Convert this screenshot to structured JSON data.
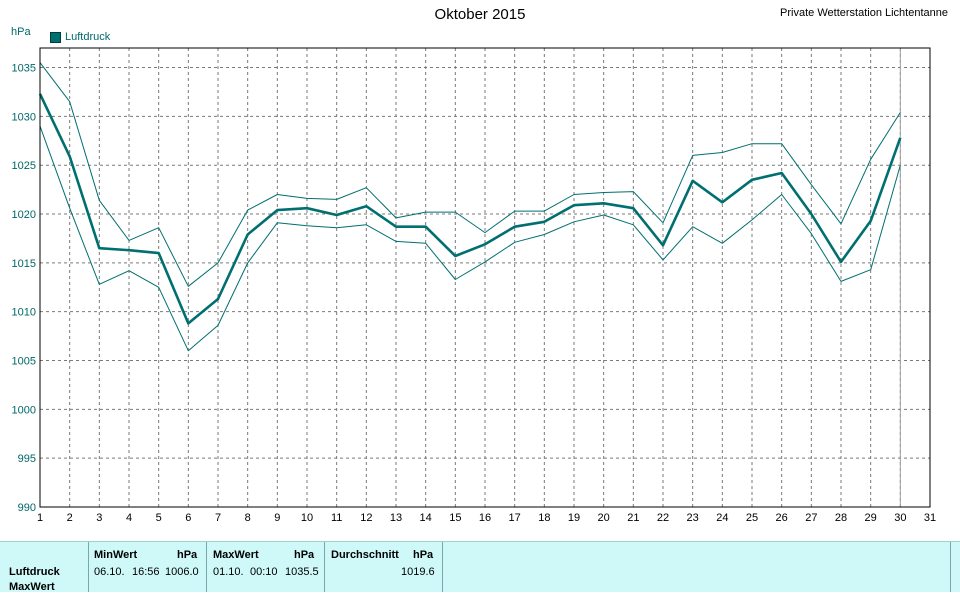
{
  "header": {
    "title": "Oktober 2015",
    "station": "Private Wetterstation Lichtentanne",
    "y_unit": "hPa",
    "legend_label": "Luftdruck"
  },
  "colors": {
    "series": "#006f6f",
    "grid": "#7a7a7a",
    "panel_bg": "#cff8f8"
  },
  "chart_data": {
    "type": "line",
    "title": "Oktober 2015",
    "ylabel": "hPa",
    "xlabel": "",
    "x": [
      1,
      2,
      3,
      4,
      5,
      6,
      7,
      8,
      9,
      10,
      11,
      12,
      13,
      14,
      15,
      16,
      17,
      18,
      19,
      20,
      21,
      22,
      23,
      24,
      25,
      26,
      27,
      28,
      29,
      30
    ],
    "xlim": [
      1,
      31
    ],
    "ylim": [
      990,
      1037
    ],
    "x_ticks": [
      1,
      2,
      3,
      4,
      5,
      6,
      7,
      8,
      9,
      10,
      11,
      12,
      13,
      14,
      15,
      16,
      17,
      18,
      19,
      20,
      21,
      22,
      23,
      24,
      25,
      26,
      27,
      28,
      29,
      30,
      31
    ],
    "y_ticks": [
      990,
      995,
      1000,
      1005,
      1010,
      1015,
      1020,
      1025,
      1030,
      1035
    ],
    "grid": true,
    "legend": "top-left",
    "series": [
      {
        "name": "Luftdruck",
        "role": "mean",
        "values": [
          1032.3,
          1025.9,
          1016.5,
          1016.3,
          1016.0,
          1008.8,
          1011.3,
          1017.9,
          1020.4,
          1020.6,
          1019.9,
          1020.8,
          1018.7,
          1018.7,
          1015.7,
          1016.9,
          1018.7,
          1019.2,
          1020.9,
          1021.1,
          1020.6,
          1016.8,
          1023.4,
          1021.2,
          1023.5,
          1024.2,
          1020.0,
          1015.1,
          1019.3,
          1027.8
        ]
      },
      {
        "role": "max",
        "values": [
          1035.5,
          1031.5,
          1021.4,
          1017.3,
          1018.6,
          1012.6,
          1015.0,
          1020.4,
          1022.0,
          1021.6,
          1021.5,
          1022.7,
          1019.6,
          1020.2,
          1020.2,
          1018.1,
          1020.3,
          1020.3,
          1022.0,
          1022.2,
          1022.3,
          1019.1,
          1026.0,
          1026.3,
          1027.2,
          1027.2,
          1023.0,
          1019.0,
          1025.6,
          1030.4
        ]
      },
      {
        "role": "min",
        "values": [
          1029.0,
          1020.6,
          1012.8,
          1014.2,
          1012.5,
          1006.0,
          1008.6,
          1015.0,
          1019.1,
          1018.8,
          1018.6,
          1018.9,
          1017.2,
          1017.0,
          1013.3,
          1015.1,
          1017.1,
          1017.9,
          1019.2,
          1019.9,
          1018.9,
          1015.3,
          1018.7,
          1017.0,
          1019.4,
          1022.0,
          1018.0,
          1013.1,
          1014.3,
          1025.0
        ]
      }
    ]
  },
  "stats": {
    "row_label_1": "Luftdruck",
    "row_label_2": "MaxWert",
    "min": {
      "header": "MinWert",
      "unit": "hPa",
      "date": "06.10.",
      "time": "16:56",
      "value": "1006.0"
    },
    "max": {
      "header": "MaxWert",
      "unit": "hPa",
      "date": "01.10.",
      "time": "00:10",
      "value": "1035.5"
    },
    "avg": {
      "header": "Durchschnitt",
      "unit": "hPa",
      "value": "1019.6"
    }
  }
}
